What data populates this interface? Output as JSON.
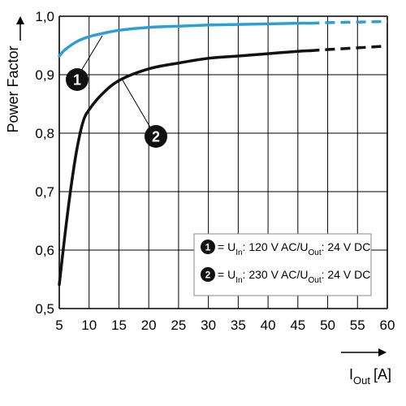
{
  "chart_data": {
    "type": "line",
    "ylabel": "Power Factor",
    "xlabel_main": "I",
    "xlabel_sub": "Out",
    "xlabel_unit": "[A]",
    "xlim": [
      5,
      60
    ],
    "ylim": [
      0.5,
      1.0
    ],
    "x_ticks": [
      5,
      10,
      15,
      20,
      25,
      30,
      35,
      40,
      45,
      50,
      55,
      60
    ],
    "y_ticks": [
      0.5,
      0.6,
      0.7,
      0.8,
      0.9,
      1.0
    ],
    "y_tick_labels": [
      "0,5",
      "0,6",
      "0,7",
      "0,8",
      "0,9",
      "1,0"
    ],
    "grid": true,
    "legend_position": "bottom-right",
    "series": [
      {
        "marker": "1",
        "color": "#2b9fd6",
        "x": [
          5,
          6,
          8,
          10,
          12,
          15,
          20,
          25,
          30,
          35,
          40,
          45,
          47
        ],
        "y": [
          0.932,
          0.943,
          0.957,
          0.965,
          0.97,
          0.976,
          0.981,
          0.983,
          0.985,
          0.986,
          0.987,
          0.988,
          0.988
        ],
        "dashed_x": [
          47,
          50,
          55,
          60
        ],
        "dashed_y": [
          0.988,
          0.989,
          0.99,
          0.991
        ],
        "legend": {
          "u": "U",
          "u_sub": "In",
          "mid": ": 120 V AC/U",
          "out_sub": "Out",
          "end": ": 24 V DC"
        }
      },
      {
        "marker": "2",
        "color": "#111111",
        "x": [
          5,
          6,
          7,
          8,
          9,
          10,
          12,
          15,
          20,
          25,
          30,
          35,
          40,
          45,
          47
        ],
        "y": [
          0.541,
          0.63,
          0.71,
          0.775,
          0.82,
          0.84,
          0.865,
          0.89,
          0.91,
          0.92,
          0.928,
          0.932,
          0.936,
          0.94,
          0.941
        ],
        "dashed_x": [
          47,
          50,
          55,
          60
        ],
        "dashed_y": [
          0.941,
          0.943,
          0.946,
          0.949
        ],
        "legend": {
          "u": "U",
          "u_sub": "In",
          "mid": ": 230 V AC/U",
          "out_sub": "Out",
          "end": ": 24 V DC"
        }
      }
    ]
  }
}
